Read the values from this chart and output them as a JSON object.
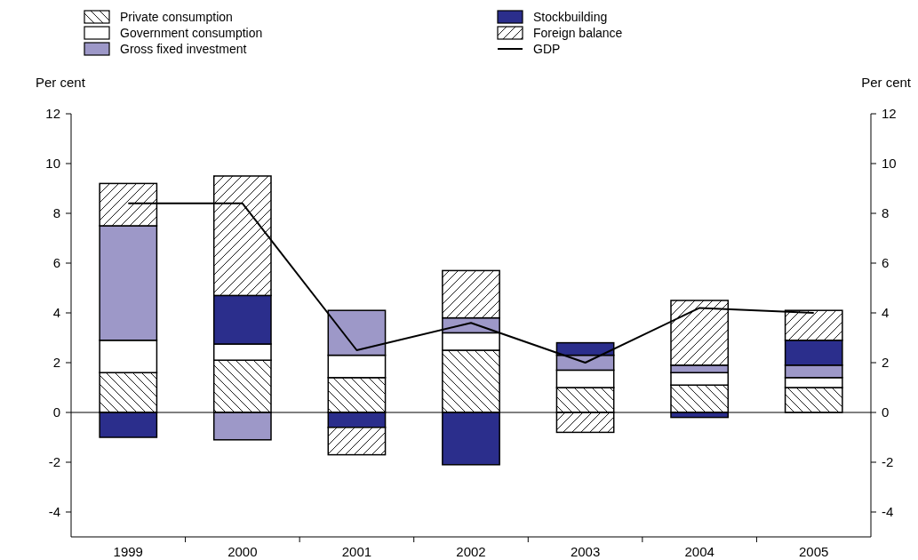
{
  "chart_data": {
    "type": "bar",
    "stacked": true,
    "ylabel": "Per cent",
    "y2label": "Per cent",
    "categories": [
      "1999",
      "2000",
      "2001",
      "2002",
      "2003",
      "2004",
      "2005"
    ],
    "series": [
      {
        "name": "Private consumption",
        "color": "#000000",
        "values": [
          1.6,
          2.1,
          1.4,
          2.5,
          1.0,
          1.1,
          1.0
        ]
      },
      {
        "name": "Government consumption",
        "color": "#ffffff",
        "values": [
          1.3,
          0.65,
          0.9,
          0.7,
          0.7,
          0.5,
          0.4
        ]
      },
      {
        "name": "Gross fixed investment",
        "color": "#9d98c8",
        "values": [
          4.6,
          -1.1,
          1.8,
          0.6,
          0.6,
          0.3,
          0.5
        ]
      },
      {
        "name": "Stockbuilding",
        "color": "#2b2e8c",
        "values": [
          -1.0,
          1.95,
          -0.6,
          -2.1,
          0.5,
          -0.2,
          1.0
        ]
      },
      {
        "name": "Foreign balance",
        "color": "#000000",
        "values": [
          1.7,
          4.8,
          -1.1,
          1.9,
          -0.8,
          2.6,
          1.2
        ]
      },
      {
        "name": "GDP",
        "type": "line",
        "color": "#000000",
        "values": [
          8.4,
          8.4,
          2.5,
          3.6,
          2.0,
          4.2,
          4.0
        ]
      }
    ],
    "ylim": [
      -5,
      12
    ],
    "yticks": [
      -4,
      -2,
      0,
      2,
      4,
      6,
      8,
      10,
      12
    ],
    "y2lim": [
      -5,
      12
    ],
    "y2ticks": [
      -4,
      -2,
      0,
      2,
      4,
      6,
      8,
      10,
      12
    ],
    "ref_lines": [
      {
        "axis": "y",
        "value": 0,
        "color": "#000000"
      }
    ],
    "legend": "top",
    "grid": false,
    "marker": "none",
    "line_style": "solid"
  }
}
